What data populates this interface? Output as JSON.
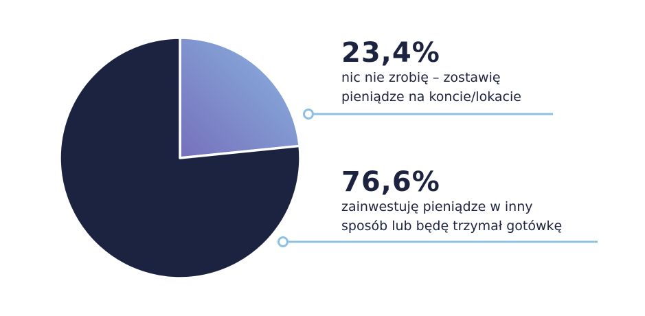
{
  "chart_data": {
    "type": "pie",
    "title": "",
    "slices": [
      {
        "label": "nic nie zrobię – zostawię pieniądze na koncie/lokacie",
        "value": 23.4,
        "value_label": "23,4%",
        "desc_lines": [
          "nic nie zrobię – zostawię",
          "pieniądze na koncie/lokacie"
        ],
        "color_start": "#8ab6e2",
        "color_end": "#7670bb"
      },
      {
        "label": "zainwestuję pieniądze w inny sposób lub będę trzymał gotówkę",
        "value": 76.6,
        "value_label": "76,6%",
        "desc_lines": [
          "zainwestuję pieniądze w inny",
          "sposób lub będę trzymał gotówkę"
        ],
        "color_start": "#1c2340",
        "color_end": "#1c2340"
      }
    ],
    "leader_color": "#8ec0e6",
    "start_angle": "12 o'clock, clockwise"
  }
}
